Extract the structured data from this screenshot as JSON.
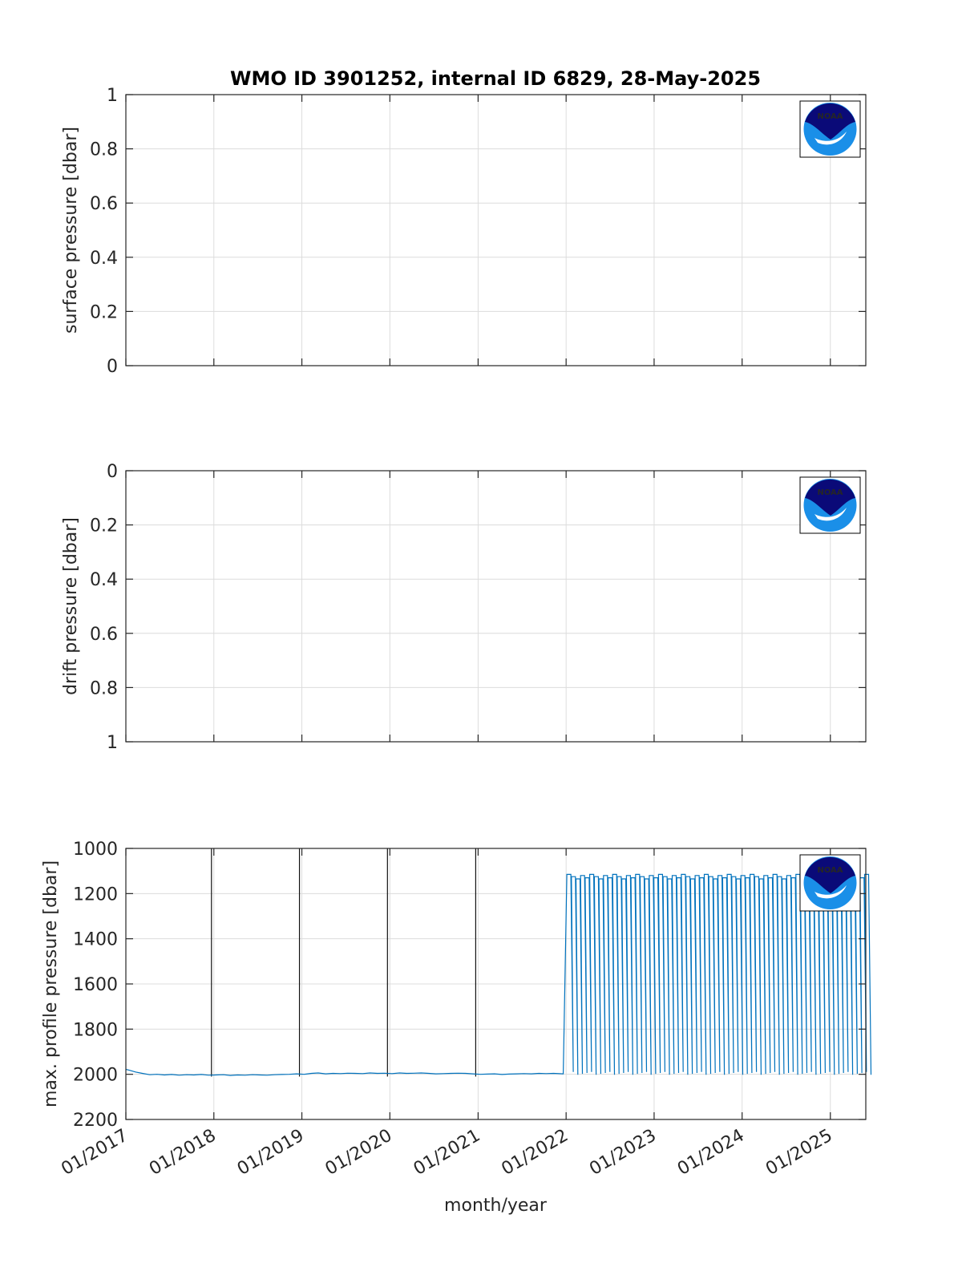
{
  "figure": {
    "title": "WMO ID 3901252, internal ID 6829, 28-May-2025",
    "xlabel": "month/year",
    "x_tick_labels": [
      "01/2017",
      "01/2018",
      "01/2019",
      "01/2020",
      "01/2021",
      "01/2022",
      "01/2023",
      "01/2024",
      "01/2025"
    ],
    "logo_label": "NOAA",
    "colors": {
      "series": "#0072BD",
      "grid": "#dcdcdc",
      "axes": "#262626",
      "logo_dark": "#0a0a78",
      "logo_light": "#1a8fe8"
    }
  },
  "chart_data": [
    {
      "type": "line",
      "title": "WMO ID 3901252, internal ID 6829, 28-May-2025",
      "ylabel": "surface pressure [dbar]",
      "xlabel": "",
      "xlim": [
        "2017-01-01",
        "2025-05-28"
      ],
      "ylim": [
        0,
        1
      ],
      "y_reversed": false,
      "yticks": [
        "0",
        "0.2",
        "0.4",
        "0.6",
        "0.8",
        "1"
      ],
      "grid": true,
      "series": []
    },
    {
      "type": "line",
      "ylabel": "drift pressure [dbar]",
      "xlabel": "",
      "xlim": [
        "2017-01-01",
        "2025-05-28"
      ],
      "ylim": [
        0,
        1
      ],
      "y_reversed": true,
      "yticks": [
        "0",
        "0.2",
        "0.4",
        "0.6",
        "0.8",
        "1"
      ],
      "grid": true,
      "series": []
    },
    {
      "type": "line",
      "ylabel": "max. profile pressure [dbar]",
      "xlabel": "month/year",
      "xlim": [
        "2017-01-01",
        "2025-05-28"
      ],
      "ylim": [
        1000,
        2200
      ],
      "y_reversed": true,
      "yticks": [
        "1000",
        "1200",
        "1400",
        "1600",
        "1800",
        "2000",
        "2200"
      ],
      "grid": true,
      "series": [
        {
          "x": [
            "2017-01-01",
            "2017-01-15",
            "2017-02-10",
            "2017-03-10",
            "2017-04-10",
            "2017-05-10",
            "2017-06-10",
            "2017-07-10",
            "2017-08-10",
            "2017-09-10",
            "2017-10-10",
            "2017-11-10",
            "2017-12-10",
            "2018-01-10",
            "2018-02-10",
            "2018-03-10",
            "2018-04-10",
            "2018-05-10",
            "2018-06-10",
            "2018-07-10",
            "2018-08-10",
            "2018-09-10",
            "2018-10-10",
            "2018-11-10",
            "2018-12-10",
            "2019-01-10",
            "2019-02-10",
            "2019-03-10",
            "2019-04-10",
            "2019-05-10",
            "2019-06-10",
            "2019-07-10",
            "2019-08-10",
            "2019-09-10",
            "2019-10-10",
            "2019-11-10",
            "2019-12-10",
            "2020-01-10",
            "2020-02-10",
            "2020-03-10",
            "2020-04-10",
            "2020-05-10",
            "2020-06-10",
            "2020-07-10",
            "2020-08-10",
            "2020-09-10",
            "2020-10-10",
            "2020-11-10",
            "2020-12-10",
            "2021-01-10",
            "2021-02-10",
            "2021-03-10",
            "2021-04-10",
            "2021-05-10",
            "2021-06-10",
            "2021-07-10",
            "2021-08-10",
            "2021-09-10",
            "2021-10-10",
            "2021-11-10",
            "2021-12-20"
          ],
          "y": [
            1978,
            1982,
            1990,
            1996,
            2002,
            2000,
            2003,
            2001,
            2004,
            2002,
            2003,
            2001,
            2004,
            2003,
            2002,
            2005,
            2003,
            2004,
            2002,
            2003,
            2004,
            2002,
            2001,
            2000,
            1998,
            2000,
            1996,
            1994,
            1998,
            1996,
            1997,
            1995,
            1996,
            1997,
            1994,
            1996,
            1995,
            1997,
            1994,
            1996,
            1995,
            1994,
            1996,
            1998,
            1997,
            1996,
            1995,
            1996,
            1998,
            2000,
            1999,
            1998,
            2001,
            1999,
            1998,
            1997,
            1998,
            1996,
            1997,
            1996,
            1998
          ]
        },
        {
          "pattern": "alternating deep (≈1990–2000 dbar) and shallow (≈1120–1130 dbar) profiles",
          "x_range": [
            "2021-12-20",
            "2025-05-28"
          ],
          "shallow_range": [
            1115,
            1135
          ],
          "deep_range": [
            1975,
            2005
          ]
        }
      ],
      "annotations": "vertical black lines at the start of each year 2018–2021"
    }
  ]
}
